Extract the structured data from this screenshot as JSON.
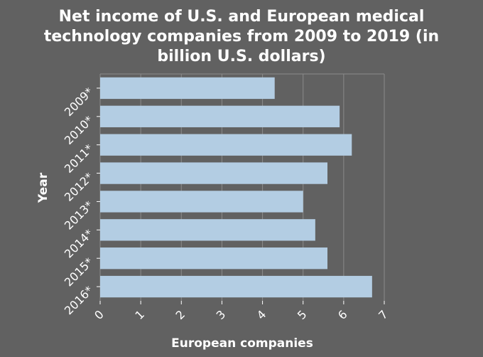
{
  "chart_data": {
    "type": "bar",
    "orientation": "horizontal",
    "title_lines": [
      "Net income of U.S. and European medical",
      "technology companies from 2009 to 2019 (in",
      "billion U.S. dollars)"
    ],
    "xlabel": "European companies",
    "ylabel": "Year",
    "categories": [
      "2009*",
      "2010*",
      "2011*",
      "2012*",
      "2013*",
      "2014*",
      "2015*",
      "2016*"
    ],
    "values": [
      4.3,
      5.9,
      6.2,
      5.6,
      5.0,
      5.3,
      5.6,
      6.7
    ],
    "xlim": [
      0,
      7
    ],
    "xticks": [
      0,
      1,
      2,
      3,
      4,
      5,
      6,
      7
    ],
    "grid": "vertical",
    "legend": "none",
    "colors": {
      "background": "#616161",
      "plot_background": "#616161",
      "bar": "#b3cde3",
      "grid": "#8a8a8a",
      "text": "#ffffff"
    }
  }
}
